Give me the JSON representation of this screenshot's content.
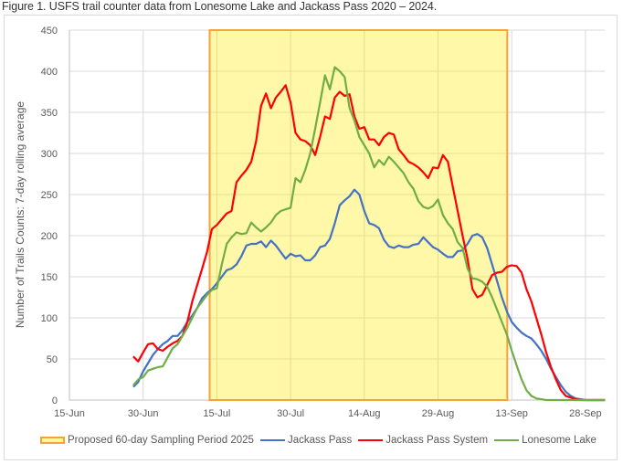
{
  "caption": "Figure 1. USFS trail counter data from Lonesome Lake and Jackass Pass 2020 – 2024.",
  "chart_data": {
    "type": "line",
    "title": "",
    "xlabel": "",
    "ylabel": "Number of Trails Counts: 7-day rolling average",
    "ylim": [
      0,
      450
    ],
    "yticks": [
      "0",
      "50",
      "100",
      "150",
      "200",
      "250",
      "300",
      "350",
      "400",
      "450"
    ],
    "xtick_labels": [
      "15-Jun",
      "30-Jun",
      "15-Jul",
      "30-Jul",
      "14-Aug",
      "29-Aug",
      "13-Sep",
      "28-Sep"
    ],
    "x_unit": "days since 15-Jun",
    "xlim": [
      0,
      109
    ],
    "grid": true,
    "legend_position": "bottom",
    "highlight_region": {
      "label": "Proposed 60-day Sampling Period 2025",
      "start_day": 29,
      "end_day": 88,
      "fill": "#fff799",
      "border": "#f4a23a"
    },
    "x_start_day": 13,
    "series": [
      {
        "name": "Jackass Pass",
        "color": "#4472c4",
        "values": [
          16,
          22,
          35,
          45,
          55,
          62,
          68,
          72,
          78,
          78,
          85,
          95,
          103,
          112,
          124,
          130,
          135,
          142,
          150,
          158,
          160,
          165,
          175,
          188,
          190,
          190,
          193,
          186,
          194,
          188,
          180,
          172,
          178,
          175,
          176,
          170,
          170,
          176,
          186,
          188,
          196,
          215,
          237,
          243,
          248,
          256,
          250,
          230,
          215,
          213,
          209,
          195,
          187,
          185,
          188,
          186,
          186,
          189,
          190,
          198,
          192,
          186,
          183,
          178,
          174,
          174,
          181,
          182,
          190,
          200,
          202,
          198,
          185,
          165,
          145,
          125,
          108,
          95,
          88,
          82,
          78,
          75,
          68,
          60,
          50,
          38,
          28,
          18,
          10,
          5,
          2,
          1,
          0,
          0,
          0,
          0,
          0
        ]
      },
      {
        "name": "Jackass Pass System",
        "color": "#ff0000",
        "values": [
          53,
          47,
          58,
          68,
          69,
          62,
          60,
          65,
          69,
          72,
          78,
          95,
          120,
          140,
          160,
          180,
          208,
          213,
          220,
          227,
          230,
          265,
          273,
          280,
          290,
          315,
          358,
          373,
          355,
          368,
          375,
          383,
          362,
          325,
          317,
          315,
          310,
          298,
          320,
          345,
          342,
          368,
          375,
          370,
          372,
          345,
          330,
          332,
          317,
          317,
          310,
          320,
          325,
          323,
          305,
          298,
          290,
          287,
          283,
          277,
          270,
          283,
          282,
          298,
          290,
          260,
          230,
          200,
          172,
          135,
          125,
          128,
          140,
          152,
          155,
          156,
          162,
          164,
          163,
          155,
          135,
          120,
          100,
          80,
          58,
          40,
          25,
          12,
          5,
          3,
          1,
          0,
          0,
          0,
          0,
          0,
          0
        ]
      },
      {
        "name": "Lonesome Lake",
        "color": "#70ad47",
        "values": [
          18,
          25,
          28,
          36,
          38,
          40,
          41,
          52,
          63,
          68,
          78,
          88,
          100,
          112,
          120,
          128,
          134,
          136,
          165,
          190,
          198,
          204,
          202,
          203,
          216,
          210,
          205,
          210,
          216,
          225,
          230,
          232,
          234,
          270,
          265,
          280,
          300,
          330,
          362,
          395,
          378,
          405,
          400,
          393,
          355,
          340,
          320,
          310,
          300,
          283,
          292,
          286,
          296,
          290,
          283,
          276,
          265,
          257,
          242,
          235,
          233,
          236,
          244,
          225,
          215,
          208,
          192,
          185,
          160,
          148,
          147,
          144,
          138,
          125,
          110,
          95,
          80,
          60,
          42,
          25,
          12,
          5,
          2,
          1,
          0,
          0,
          0,
          0,
          0,
          0,
          0,
          0,
          0,
          0,
          0,
          0,
          0
        ]
      }
    ]
  }
}
